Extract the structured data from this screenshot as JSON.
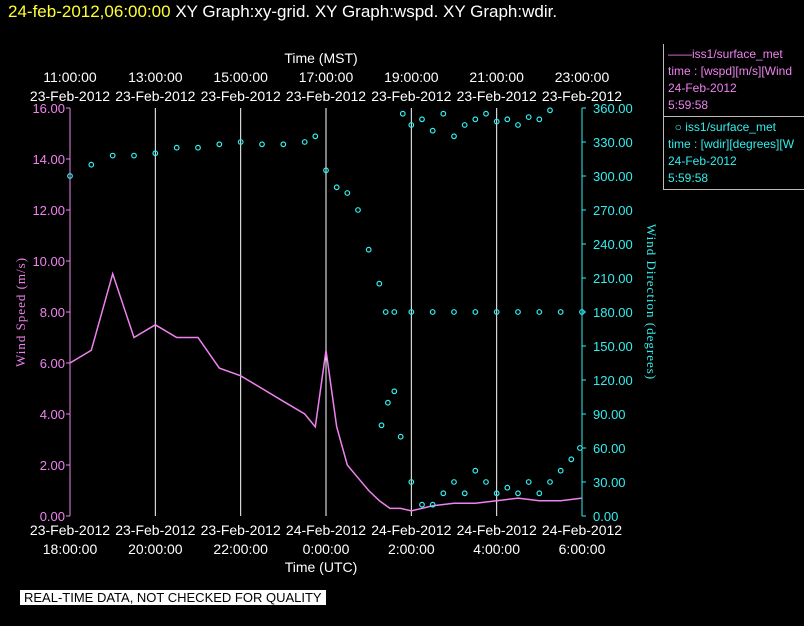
{
  "header": {
    "timestamp": "24-feb-2012,06:00:00",
    "titles": "XY Graph:xy-grid.  XY Graph:wspd.  XY Graph:wdir."
  },
  "legend": {
    "wspd": {
      "series": "iss1/surface_met",
      "var": "time : [wspd][m/s][Wind",
      "date": "24-Feb-2012",
      "time": "5:59:58"
    },
    "wdir": {
      "series": "iss1/surface_met",
      "var": "time : [wdir][degrees][W",
      "date": "24-Feb-2012",
      "time": "5:59:58"
    }
  },
  "notice": "REAL-TIME DATA, NOT CHECKED FOR QUALITY",
  "colors": {
    "wspd": "#ee82ee",
    "wdir": "#33eeee",
    "grid": "#ffffff",
    "header": "#ffff33"
  },
  "chart_data": {
    "type": "line",
    "top_axis": {
      "label": "Time (MST)",
      "ticks": [
        {
          "time": "11:00:00",
          "date": "23-Feb-2012"
        },
        {
          "time": "13:00:00",
          "date": "23-Feb-2012"
        },
        {
          "time": "15:00:00",
          "date": "23-Feb-2012"
        },
        {
          "time": "17:00:00",
          "date": "23-Feb-2012"
        },
        {
          "time": "19:00:00",
          "date": "23-Feb-2012"
        },
        {
          "time": "21:00:00",
          "date": "23-Feb-2012"
        },
        {
          "time": "23:00:00",
          "date": "23-Feb-2012"
        }
      ]
    },
    "bottom_axis": {
      "label": "Time (UTC)",
      "ticks": [
        {
          "date": "23-Feb-2012",
          "time": "18:00:00"
        },
        {
          "date": "23-Feb-2012",
          "time": "20:00:00"
        },
        {
          "date": "23-Feb-2012",
          "time": "22:00:00"
        },
        {
          "date": "24-Feb-2012",
          "time": "0:00:00"
        },
        {
          "date": "24-Feb-2012",
          "time": "2:00:00"
        },
        {
          "date": "24-Feb-2012",
          "time": "4:00:00"
        },
        {
          "date": "24-Feb-2012",
          "time": "6:00:00"
        }
      ]
    },
    "xlim_utc_hours": [
      18,
      30
    ],
    "grid": true,
    "left_axis": {
      "label": "Wind Speed (m/s)",
      "ylim": [
        0,
        16
      ],
      "tick_labels": [
        "0.00",
        "2.00",
        "4.00",
        "6.00",
        "8.00",
        "10.00",
        "12.00",
        "14.00",
        "16.00"
      ]
    },
    "right_axis": {
      "label": "Wind Direction (degrees)",
      "ylim": [
        0,
        360
      ],
      "tick_labels": [
        "0.00",
        "30.00",
        "60.00",
        "90.00",
        "120.00",
        "150.00",
        "180.00",
        "210.00",
        "240.00",
        "270.00",
        "300.00",
        "330.00",
        "360.00"
      ]
    },
    "series": [
      {
        "name": "iss1/surface_met wspd",
        "axis": "left",
        "style": "line",
        "x_utc_hours": [
          18.0,
          18.5,
          19.0,
          19.5,
          20.0,
          20.5,
          21.0,
          21.5,
          22.0,
          22.5,
          23.0,
          23.5,
          23.75,
          24.0,
          24.25,
          24.5,
          24.75,
          25.0,
          25.25,
          25.5,
          25.75,
          26.0,
          26.5,
          27.0,
          27.5,
          28.0,
          28.5,
          29.0,
          29.5,
          30.0
        ],
        "values": [
          6.0,
          6.5,
          9.5,
          7.0,
          7.5,
          7.0,
          7.0,
          5.8,
          5.5,
          5.0,
          4.5,
          4.0,
          3.5,
          6.5,
          3.5,
          2.0,
          1.5,
          1.0,
          0.6,
          0.3,
          0.3,
          0.2,
          0.4,
          0.5,
          0.5,
          0.6,
          0.7,
          0.6,
          0.6,
          0.7
        ]
      },
      {
        "name": "iss1/surface_met wdir",
        "axis": "right",
        "style": "points",
        "x_utc_hours": [
          18.0,
          18.5,
          19.0,
          19.5,
          20.0,
          20.5,
          21.0,
          21.5,
          22.0,
          22.5,
          23.0,
          23.5,
          23.75,
          24.0,
          24.25,
          24.5,
          24.75,
          25.0,
          25.25,
          25.4,
          25.6,
          26.0,
          26.5,
          27.0,
          27.5,
          28.0,
          28.5,
          29.0,
          29.5,
          30.0
        ],
        "values": [
          300,
          310,
          318,
          318,
          320,
          325,
          325,
          328,
          330,
          328,
          328,
          330,
          335,
          305,
          290,
          285,
          270,
          235,
          205,
          180,
          180,
          180,
          180,
          180,
          180,
          180,
          180,
          180,
          180,
          180
        ]
      },
      {
        "name": "iss1/surface_met wdir low",
        "axis": "right",
        "style": "points",
        "x_utc_hours": [
          25.3,
          25.45,
          25.6,
          25.75,
          26.0,
          26.25,
          26.5,
          26.75,
          27.0,
          27.25,
          27.5,
          27.75,
          28.0,
          28.25,
          28.5,
          28.75,
          29.0,
          29.25,
          29.5,
          29.75,
          29.95
        ],
        "values": [
          80,
          100,
          110,
          70,
          30,
          10,
          10,
          20,
          30,
          20,
          40,
          30,
          20,
          25,
          20,
          30,
          20,
          30,
          40,
          50,
          60
        ]
      },
      {
        "name": "iss1/surface_met wdir high",
        "axis": "right",
        "style": "points",
        "x_utc_hours": [
          25.8,
          26.0,
          26.25,
          26.5,
          26.75,
          27.0,
          27.25,
          27.5,
          27.75,
          28.0,
          28.25,
          28.5,
          28.75,
          29.0,
          29.25
        ],
        "values": [
          355,
          345,
          350,
          340,
          355,
          335,
          345,
          350,
          355,
          348,
          350,
          345,
          352,
          350,
          358
        ]
      }
    ]
  }
}
